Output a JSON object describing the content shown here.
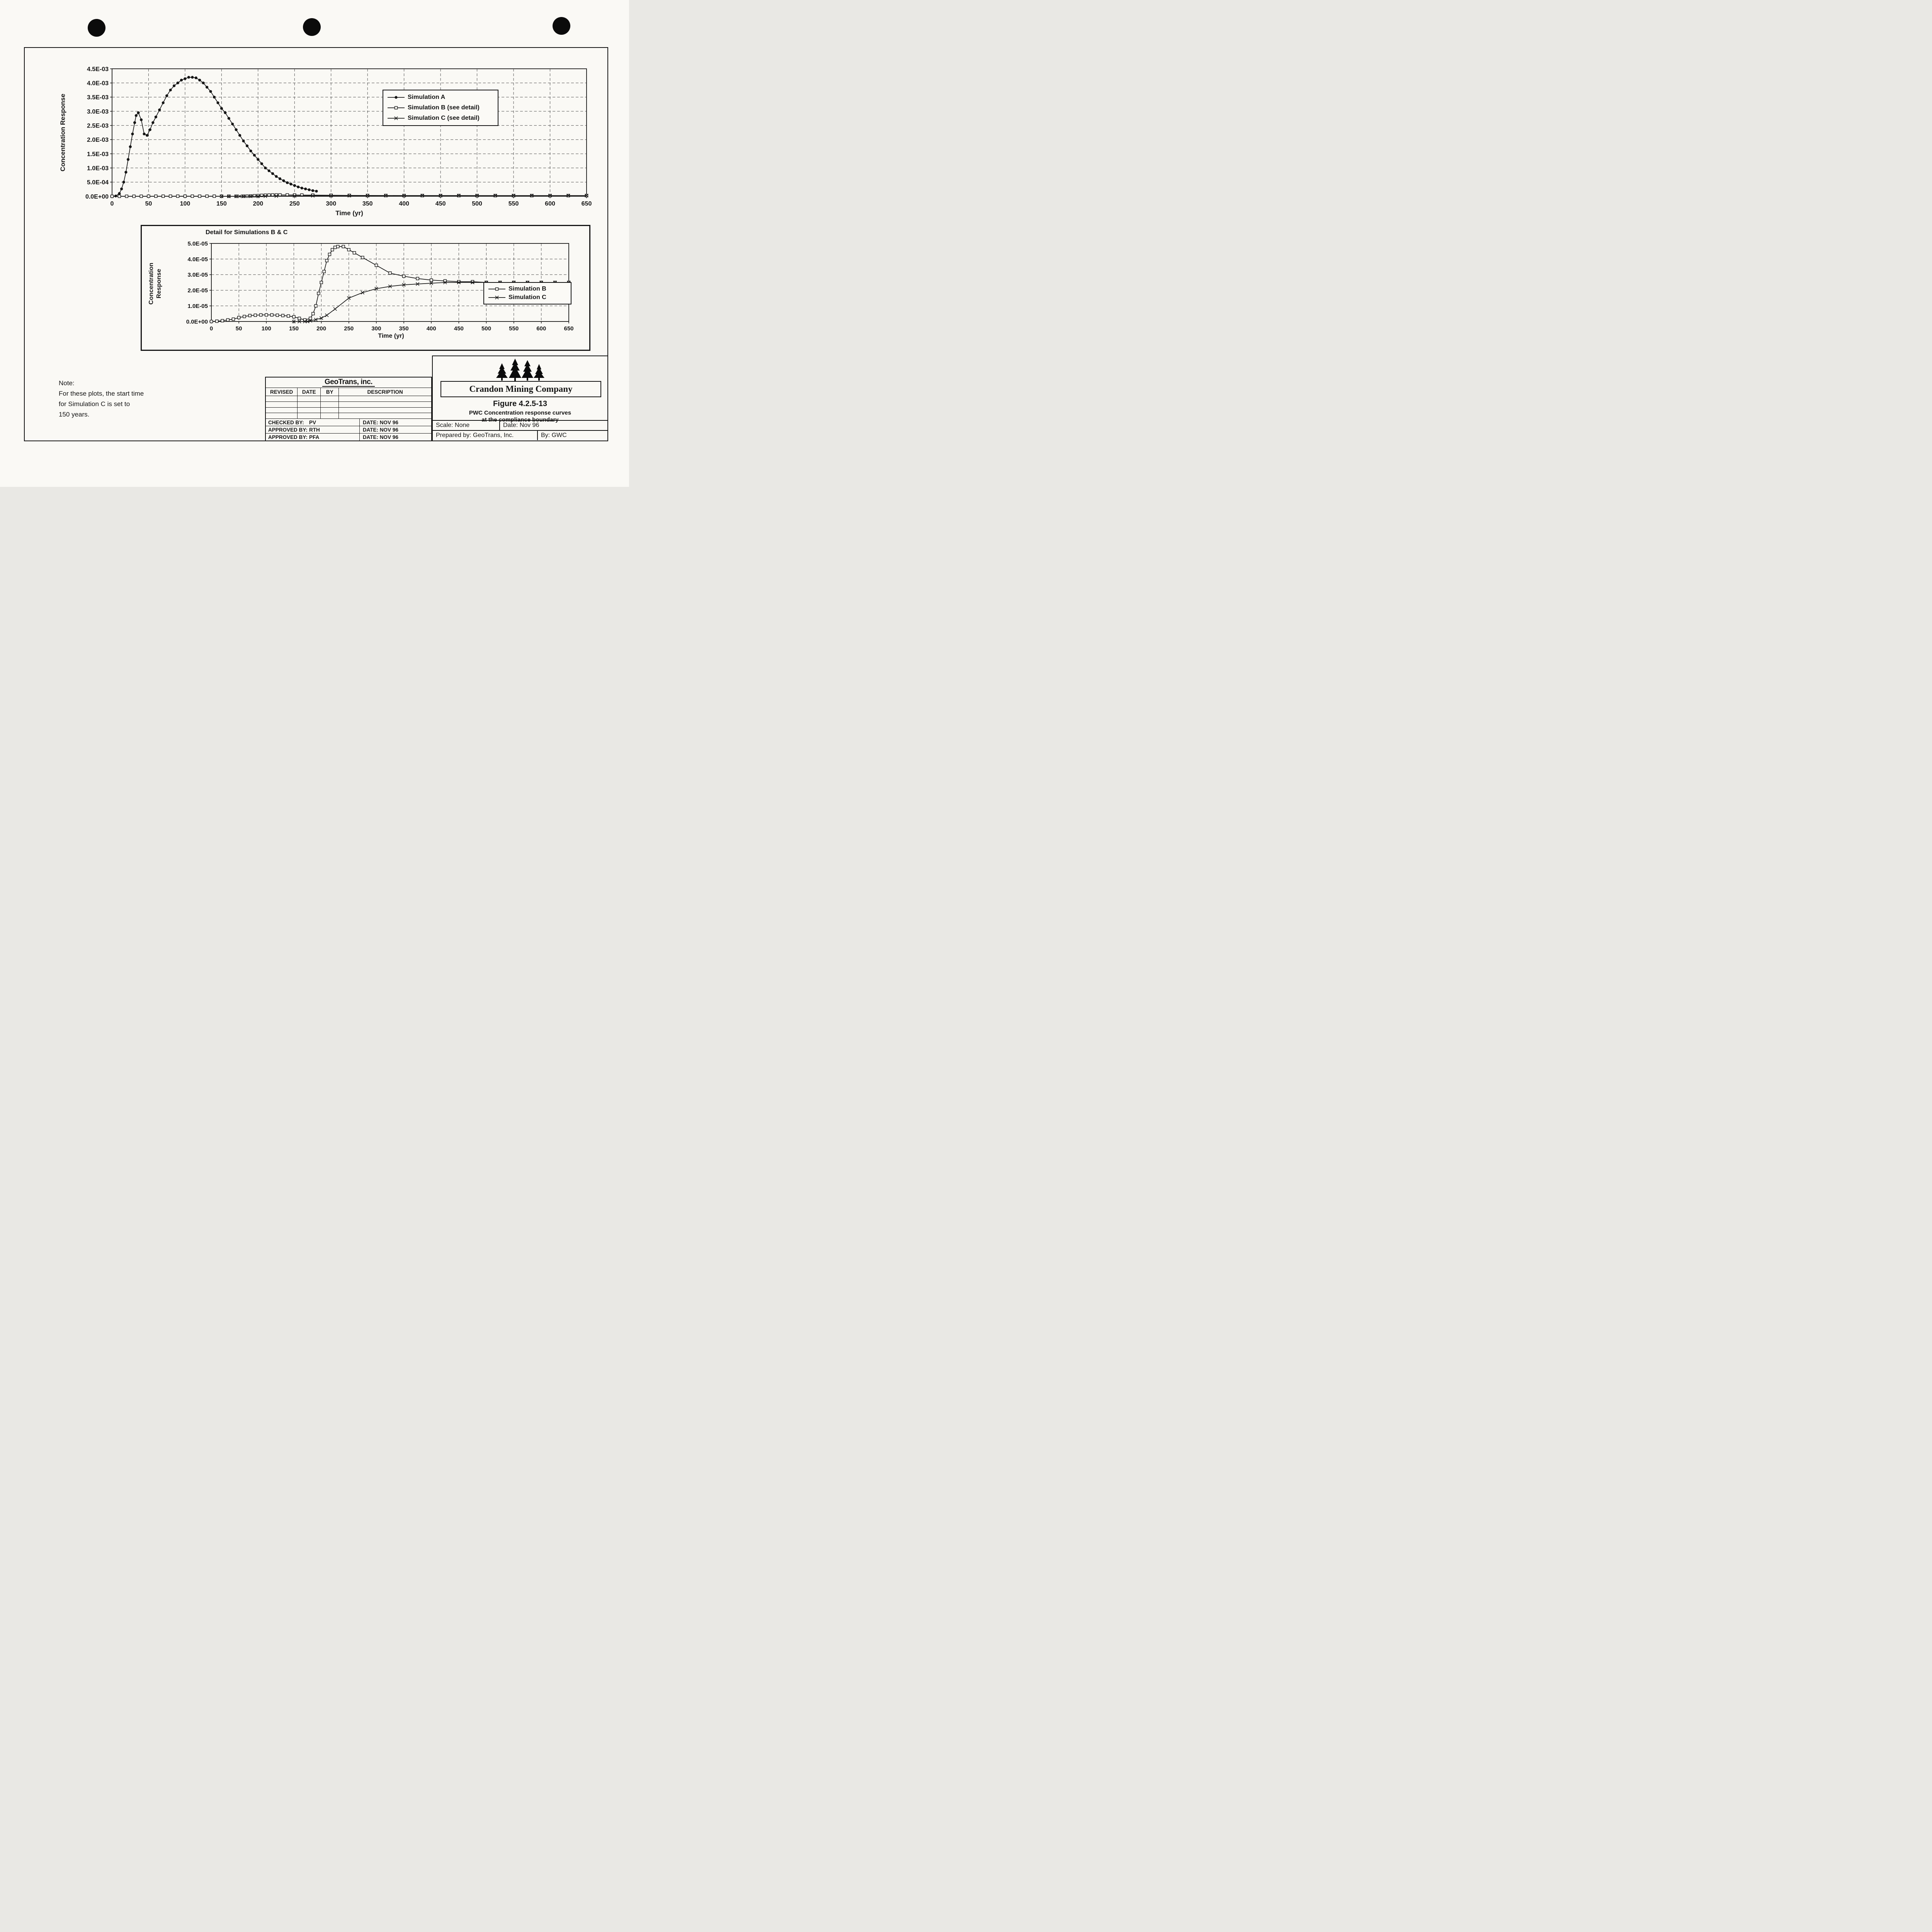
{
  "page": {
    "colors": {
      "ink": "#151515",
      "paper": "#faf9f5"
    },
    "note": {
      "heading": "Note:",
      "lines": [
        "For these plots, the start time",
        "for Simulation C is set to",
        "150 years."
      ]
    },
    "titleblock": {
      "geotrans": {
        "logo": "GeoTrans, inc.",
        "columns": [
          "REVISED",
          "DATE",
          "BY",
          "DESCRIPTION"
        ],
        "signoff_rows": [
          {
            "label": "CHECKED BY:",
            "value": "PV",
            "date": "DATE: NOV 96"
          },
          {
            "label": "APPROVED BY:",
            "value": "RTH",
            "date": "DATE: NOV 96"
          },
          {
            "label": "APPROVED BY:",
            "value": "PFA",
            "date": "DATE: NOV 96"
          }
        ]
      },
      "crandon": {
        "company": "Crandon Mining Company",
        "figure_title": "Figure 4.2.5-13",
        "caption_line1": "PWC Concentration response curves",
        "caption_line2": "at the compliance boundary",
        "scale_label": "Scale: None",
        "date_label": "Date: Nov 96",
        "prepared_label": "Prepared by: GeoTrans, Inc.",
        "by_label": "By: GWC"
      }
    }
  },
  "chart_data": [
    {
      "id": "main",
      "type": "line",
      "title": "",
      "xlabel": "Time (yr)",
      "ylabel": "Concentration Response",
      "xlim": [
        0,
        650
      ],
      "ylim": [
        0,
        0.0045
      ],
      "grid": "dashed",
      "legend_position": "upper right",
      "xticks": {
        "values": [
          0,
          50,
          100,
          150,
          200,
          250,
          300,
          350,
          400,
          450,
          500,
          550,
          600,
          650
        ],
        "labels": [
          "0",
          "50",
          "100",
          "150",
          "200",
          "250",
          "300",
          "350",
          "400",
          "450",
          "500",
          "550",
          "600",
          "650"
        ]
      },
      "yticks": {
        "values": [
          0,
          0.0005,
          0.001,
          0.0015,
          0.002,
          0.0025,
          0.003,
          0.0035,
          0.004,
          0.0045
        ],
        "labels": [
          "0.0E+00",
          "5.0E-04",
          "1.0E-03",
          "1.5E-03",
          "2.0E-03",
          "2.5E-03",
          "3.0E-03",
          "3.5E-03",
          "4.0E-03",
          "4.5E-03"
        ]
      },
      "legend": [
        {
          "label": "Simulation A",
          "marker": "circle"
        },
        {
          "label": "Simulation B (see detail)",
          "marker": "square"
        },
        {
          "label": "Simulation C (see detail)",
          "marker": "x"
        }
      ],
      "series": [
        {
          "name": "Simulation A",
          "marker": "circle",
          "x": [
            0,
            5,
            10,
            13,
            16,
            19,
            22,
            25,
            28,
            31,
            33,
            36,
            40,
            44,
            48,
            52,
            56,
            60,
            65,
            70,
            75,
            80,
            85,
            90,
            95,
            100,
            105,
            110,
            115,
            120,
            125,
            130,
            135,
            140,
            145,
            150,
            155,
            160,
            165,
            170,
            175,
            180,
            185,
            190,
            195,
            200,
            205,
            210,
            215,
            220,
            225,
            230,
            235,
            240,
            245,
            250,
            255,
            260,
            265,
            270,
            275,
            280
          ],
          "y": [
            0,
            1e-05,
            0.0001,
            0.00026,
            0.0005,
            0.00085,
            0.0013,
            0.00175,
            0.0022,
            0.0026,
            0.00285,
            0.00295,
            0.0027,
            0.0022,
            0.00215,
            0.00235,
            0.0026,
            0.0028,
            0.00305,
            0.0033,
            0.00355,
            0.00375,
            0.0039,
            0.004,
            0.0041,
            0.00415,
            0.0042,
            0.0042,
            0.00418,
            0.0041,
            0.004,
            0.00385,
            0.0037,
            0.0035,
            0.0033,
            0.0031,
            0.00295,
            0.00275,
            0.00255,
            0.00235,
            0.00215,
            0.00195,
            0.00178,
            0.0016,
            0.00145,
            0.0013,
            0.00115,
            0.001,
            0.0009,
            0.0008,
            0.0007,
            0.00062,
            0.00055,
            0.00048,
            0.00043,
            0.00038,
            0.00033,
            0.00029,
            0.00026,
            0.00023,
            0.0002,
            0.00018
          ]
        },
        {
          "name": "Simulation B (see detail)",
          "marker": "square",
          "x": [
            0,
            10,
            20,
            30,
            40,
            50,
            60,
            70,
            80,
            90,
            100,
            110,
            120,
            130,
            140,
            150,
            160,
            170,
            180,
            185,
            190,
            195,
            200,
            205,
            210,
            215,
            220,
            225,
            230,
            240,
            250,
            260,
            275,
            300,
            325,
            350,
            375,
            400,
            425,
            450,
            475,
            500,
            525,
            550,
            575,
            600,
            625,
            650
          ],
          "y": [
            0,
            2e-07,
            5e-07,
            1e-06,
            1.5e-06,
            2.5e-06,
            3.2e-06,
            3.8e-06,
            4e-06,
            4.2e-06,
            4.2e-06,
            4.2e-06,
            4e-06,
            3.8e-06,
            3.5e-06,
            3e-06,
            2e-06,
            1e-06,
            2e-06,
            5e-06,
            1e-05,
            1.8e-05,
            2.5e-05,
            3.2e-05,
            3.9e-05,
            4.3e-05,
            4.6e-05,
            4.75e-05,
            4.8e-05,
            4.8e-05,
            4.6e-05,
            4.4e-05,
            4.1e-05,
            3.6e-05,
            3.1e-05,
            2.9e-05,
            2.75e-05,
            2.65e-05,
            2.6e-05,
            2.55e-05,
            2.55e-05,
            2.5e-05,
            2.5e-05,
            2.5e-05,
            2.5e-05,
            2.5e-05,
            2.5e-05,
            2.5e-05
          ]
        },
        {
          "name": "Simulation C (see detail)",
          "marker": "x",
          "x": [
            150,
            160,
            170,
            175,
            180,
            190,
            200,
            210,
            225,
            250,
            275,
            300,
            325,
            350,
            375,
            400,
            425,
            450,
            475,
            500,
            525,
            550,
            575,
            600,
            625,
            650
          ],
          "y": [
            0,
            0,
            0,
            0,
            5e-07,
            1.2e-06,
            2.2e-06,
            4e-06,
            8e-06,
            1.5e-05,
            1.85e-05,
            2.1e-05,
            2.25e-05,
            2.35e-05,
            2.4e-05,
            2.45e-05,
            2.5e-05,
            2.5e-05,
            2.5e-05,
            2.5e-05,
            2.5e-05,
            2.5e-05,
            2.5e-05,
            2.5e-05,
            2.5e-05,
            2.5e-05
          ]
        }
      ]
    },
    {
      "id": "detail",
      "type": "line",
      "title": "Detail for Simulations B & C",
      "xlabel": "Time (yr)",
      "ylabel": "Concentration Response",
      "xlim": [
        0,
        650
      ],
      "ylim": [
        0,
        5e-05
      ],
      "grid": "dashed",
      "legend_position": "lower right",
      "xticks": {
        "values": [
          0,
          50,
          100,
          150,
          200,
          250,
          300,
          350,
          400,
          450,
          500,
          550,
          600,
          650
        ],
        "labels": [
          "0",
          "50",
          "100",
          "150",
          "200",
          "250",
          "300",
          "350",
          "400",
          "450",
          "500",
          "550",
          "600",
          "650"
        ]
      },
      "yticks": {
        "values": [
          0,
          1e-05,
          2e-05,
          3e-05,
          4e-05,
          5e-05
        ],
        "labels": [
          "0.0E+00",
          "1.0E-05",
          "2.0E-05",
          "3.0E-05",
          "4.0E-05",
          "5.0E-05"
        ]
      },
      "legend": [
        {
          "label": "Simulation B",
          "marker": "square"
        },
        {
          "label": "Simulation C",
          "marker": "x"
        }
      ],
      "series": [
        {
          "name": "Simulation B",
          "marker": "square",
          "x": [
            0,
            10,
            20,
            30,
            40,
            50,
            60,
            70,
            80,
            90,
            100,
            110,
            120,
            130,
            140,
            150,
            160,
            170,
            180,
            185,
            190,
            195,
            200,
            205,
            210,
            215,
            220,
            225,
            230,
            240,
            250,
            260,
            275,
            300,
            325,
            350,
            375,
            400,
            425,
            450,
            475,
            500,
            525,
            550,
            575,
            600,
            625,
            650
          ],
          "y": [
            0,
            2e-07,
            5e-07,
            1e-06,
            1.5e-06,
            2.5e-06,
            3.2e-06,
            3.8e-06,
            4e-06,
            4.2e-06,
            4.2e-06,
            4.2e-06,
            4e-06,
            3.8e-06,
            3.5e-06,
            3e-06,
            2e-06,
            1e-06,
            2e-06,
            5e-06,
            1e-05,
            1.8e-05,
            2.5e-05,
            3.2e-05,
            3.9e-05,
            4.3e-05,
            4.6e-05,
            4.75e-05,
            4.8e-05,
            4.8e-05,
            4.6e-05,
            4.4e-05,
            4.1e-05,
            3.6e-05,
            3.1e-05,
            2.9e-05,
            2.75e-05,
            2.65e-05,
            2.6e-05,
            2.55e-05,
            2.55e-05,
            2.5e-05,
            2.5e-05,
            2.5e-05,
            2.5e-05,
            2.5e-05,
            2.5e-05,
            2.5e-05
          ]
        },
        {
          "name": "Simulation C",
          "marker": "x",
          "x": [
            150,
            160,
            170,
            175,
            180,
            190,
            200,
            210,
            225,
            250,
            275,
            300,
            325,
            350,
            375,
            400,
            425,
            450,
            475,
            500,
            525,
            550,
            575,
            600,
            625,
            650
          ],
          "y": [
            0,
            0,
            0,
            0,
            5e-07,
            1.2e-06,
            2.2e-06,
            4e-06,
            8e-06,
            1.5e-05,
            1.85e-05,
            2.1e-05,
            2.25e-05,
            2.35e-05,
            2.4e-05,
            2.45e-05,
            2.5e-05,
            2.5e-05,
            2.5e-05,
            2.5e-05,
            2.5e-05,
            2.5e-05,
            2.5e-05,
            2.5e-05,
            2.5e-05,
            2.5e-05
          ]
        }
      ]
    }
  ]
}
